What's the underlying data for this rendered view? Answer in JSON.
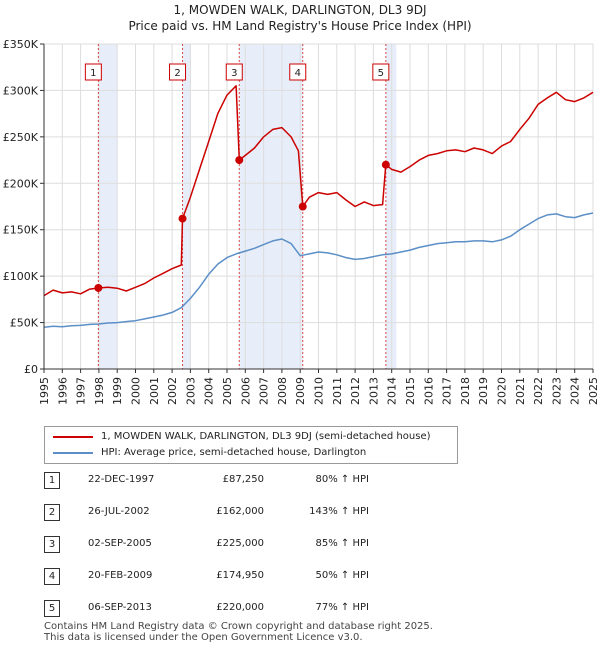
{
  "header": {
    "title_line1": "1, MOWDEN WALK, DARLINGTON, DL3 9DJ",
    "title_line2": "Price paid vs. HM Land Registry's House Price Index (HPI)"
  },
  "colors": {
    "property_line": "#cc0000",
    "hpi_line": "#5b8fc7",
    "shade": "#e8eef9",
    "grid": "#dddddd",
    "marker_border": "#cc0000",
    "marker_line": "#cc0000"
  },
  "chart_data": {
    "type": "line",
    "x_range": [
      1995,
      2025
    ],
    "ylim": [
      0,
      350000
    ],
    "y_ticks": [
      0,
      50000,
      100000,
      150000,
      200000,
      250000,
      300000,
      350000
    ],
    "y_tick_labels": [
      "£0",
      "£50K",
      "£100K",
      "£150K",
      "£200K",
      "£250K",
      "£300K",
      "£350K"
    ],
    "x_ticks": [
      1995,
      1996,
      1997,
      1998,
      1999,
      2000,
      2001,
      2002,
      2003,
      2004,
      2005,
      2006,
      2007,
      2008,
      2009,
      2010,
      2011,
      2012,
      2013,
      2014,
      2015,
      2016,
      2017,
      2018,
      2019,
      2020,
      2021,
      2022,
      2023,
      2024,
      2025
    ],
    "x_tick_labels": [
      "1995",
      "1996",
      "1997",
      "1998",
      "1999",
      "2000",
      "2001",
      "2002",
      "2003",
      "2004",
      "2005",
      "2006",
      "2007",
      "2008",
      "2009",
      "2010",
      "2011",
      "2012",
      "2013",
      "2014",
      "2015",
      "2016",
      "2017",
      "2018",
      "2019",
      "2020",
      "2021",
      "2022",
      "2023",
      "2024",
      "2025"
    ],
    "shaded_periods": [
      [
        1997.97,
        1999.0
      ],
      [
        2002.57,
        2003.0
      ],
      [
        2005.67,
        2009.14
      ],
      [
        2013.68,
        2014.25
      ]
    ],
    "series": [
      {
        "name": "1, MOWDEN WALK, DARLINGTON, DL3 9DJ (semi-detached house)",
        "points": [
          [
            1995.0,
            79000
          ],
          [
            1995.5,
            85000
          ],
          [
            1996.0,
            82000
          ],
          [
            1996.5,
            83000
          ],
          [
            1997.0,
            81000
          ],
          [
            1997.5,
            86000
          ],
          [
            1997.97,
            87250
          ],
          [
            1998.5,
            88000
          ],
          [
            1999.0,
            87000
          ],
          [
            1999.5,
            84000
          ],
          [
            2000.0,
            88000
          ],
          [
            2000.5,
            92000
          ],
          [
            2001.0,
            98000
          ],
          [
            2001.5,
            103000
          ],
          [
            2002.0,
            108000
          ],
          [
            2002.5,
            112000
          ],
          [
            2002.57,
            162000
          ],
          [
            2003.0,
            185000
          ],
          [
            2003.5,
            215000
          ],
          [
            2004.0,
            245000
          ],
          [
            2004.5,
            275000
          ],
          [
            2005.0,
            295000
          ],
          [
            2005.5,
            305000
          ],
          [
            2005.67,
            225000
          ],
          [
            2006.0,
            230000
          ],
          [
            2006.5,
            238000
          ],
          [
            2007.0,
            250000
          ],
          [
            2007.5,
            258000
          ],
          [
            2008.0,
            260000
          ],
          [
            2008.5,
            250000
          ],
          [
            2008.9,
            235000
          ],
          [
            2009.14,
            174950
          ],
          [
            2009.5,
            185000
          ],
          [
            2010.0,
            190000
          ],
          [
            2010.5,
            188000
          ],
          [
            2011.0,
            190000
          ],
          [
            2011.5,
            182000
          ],
          [
            2012.0,
            175000
          ],
          [
            2012.5,
            180000
          ],
          [
            2013.0,
            176000
          ],
          [
            2013.5,
            177000
          ],
          [
            2013.68,
            220000
          ],
          [
            2014.0,
            215000
          ],
          [
            2014.5,
            212000
          ],
          [
            2015.0,
            218000
          ],
          [
            2015.5,
            225000
          ],
          [
            2016.0,
            230000
          ],
          [
            2016.5,
            232000
          ],
          [
            2017.0,
            235000
          ],
          [
            2017.5,
            236000
          ],
          [
            2018.0,
            234000
          ],
          [
            2018.5,
            238000
          ],
          [
            2019.0,
            236000
          ],
          [
            2019.5,
            232000
          ],
          [
            2020.0,
            240000
          ],
          [
            2020.5,
            245000
          ],
          [
            2021.0,
            258000
          ],
          [
            2021.5,
            270000
          ],
          [
            2022.0,
            285000
          ],
          [
            2022.5,
            292000
          ],
          [
            2023.0,
            298000
          ],
          [
            2023.5,
            290000
          ],
          [
            2024.0,
            288000
          ],
          [
            2024.5,
            292000
          ],
          [
            2025.0,
            298000
          ]
        ]
      },
      {
        "name": "HPI: Average price, semi-detached house, Darlington",
        "points": [
          [
            1995.0,
            45000
          ],
          [
            1995.5,
            46000
          ],
          [
            1996.0,
            45500
          ],
          [
            1996.5,
            46500
          ],
          [
            1997.0,
            47000
          ],
          [
            1997.5,
            48000
          ],
          [
            1998.0,
            48500
          ],
          [
            1998.5,
            49500
          ],
          [
            1999.0,
            50000
          ],
          [
            1999.5,
            51000
          ],
          [
            2000.0,
            52000
          ],
          [
            2000.5,
            54000
          ],
          [
            2001.0,
            56000
          ],
          [
            2001.5,
            58000
          ],
          [
            2002.0,
            61000
          ],
          [
            2002.5,
            66000
          ],
          [
            2003.0,
            76000
          ],
          [
            2003.5,
            88000
          ],
          [
            2004.0,
            102000
          ],
          [
            2004.5,
            113000
          ],
          [
            2005.0,
            120000
          ],
          [
            2005.5,
            124000
          ],
          [
            2006.0,
            127000
          ],
          [
            2006.5,
            130000
          ],
          [
            2007.0,
            134000
          ],
          [
            2007.5,
            138000
          ],
          [
            2008.0,
            140000
          ],
          [
            2008.5,
            135000
          ],
          [
            2009.0,
            122000
          ],
          [
            2009.5,
            124000
          ],
          [
            2010.0,
            126000
          ],
          [
            2010.5,
            125000
          ],
          [
            2011.0,
            123000
          ],
          [
            2011.5,
            120000
          ],
          [
            2012.0,
            118000
          ],
          [
            2012.5,
            119000
          ],
          [
            2013.0,
            121000
          ],
          [
            2013.5,
            123000
          ],
          [
            2014.0,
            124000
          ],
          [
            2014.5,
            126000
          ],
          [
            2015.0,
            128000
          ],
          [
            2015.5,
            131000
          ],
          [
            2016.0,
            133000
          ],
          [
            2016.5,
            135000
          ],
          [
            2017.0,
            136000
          ],
          [
            2017.5,
            137000
          ],
          [
            2018.0,
            137000
          ],
          [
            2018.5,
            138000
          ],
          [
            2019.0,
            138000
          ],
          [
            2019.5,
            137000
          ],
          [
            2020.0,
            139000
          ],
          [
            2020.5,
            143000
          ],
          [
            2021.0,
            150000
          ],
          [
            2021.5,
            156000
          ],
          [
            2022.0,
            162000
          ],
          [
            2022.5,
            166000
          ],
          [
            2023.0,
            167000
          ],
          [
            2023.5,
            164000
          ],
          [
            2024.0,
            163000
          ],
          [
            2024.5,
            166000
          ],
          [
            2025.0,
            168000
          ]
        ]
      }
    ],
    "sales": [
      {
        "label": "1",
        "x": 1997.97,
        "price": 87250
      },
      {
        "label": "2",
        "x": 2002.57,
        "price": 162000
      },
      {
        "label": "3",
        "x": 2005.67,
        "price": 225000
      },
      {
        "label": "4",
        "x": 2009.14,
        "price": 174950
      },
      {
        "label": "5",
        "x": 2013.68,
        "price": 220000
      }
    ]
  },
  "legend": {
    "property_label": "1, MOWDEN WALK, DARLINGTON, DL3 9DJ (semi-detached house)",
    "hpi_label": "HPI: Average price, semi-detached house, Darlington"
  },
  "sales_table": [
    {
      "num": "1",
      "date": "22-DEC-1997",
      "price": "£87,250",
      "hpi": "80% ↑ HPI"
    },
    {
      "num": "2",
      "date": "26-JUL-2002",
      "price": "£162,000",
      "hpi": "143% ↑ HPI"
    },
    {
      "num": "3",
      "date": "02-SEP-2005",
      "price": "£225,000",
      "hpi": "85% ↑ HPI"
    },
    {
      "num": "4",
      "date": "20-FEB-2009",
      "price": "£174,950",
      "hpi": "50% ↑ HPI"
    },
    {
      "num": "5",
      "date": "06-SEP-2013",
      "price": "£220,000",
      "hpi": "77% ↑ HPI"
    }
  ],
  "footer": {
    "line1": "Contains HM Land Registry data © Crown copyright and database right 2025.",
    "line2": "This data is licensed under the Open Government Licence v3.0."
  }
}
